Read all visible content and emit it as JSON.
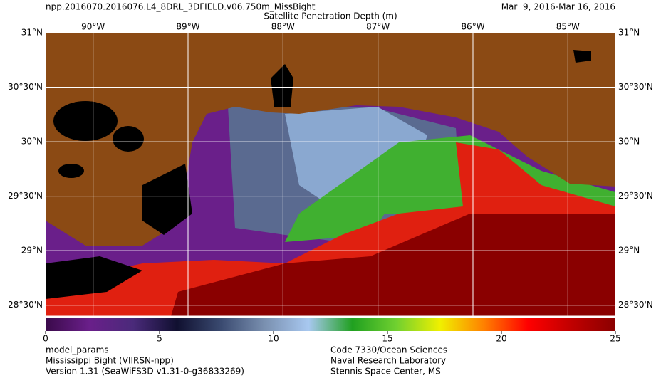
{
  "map_data": {
    "title": "npp.2016070.2016076.L4_8DRL_3DFIELD.v06.750m_MissBight",
    "date_range": "Mar  9, 2016-Mar 16, 2016",
    "product": "Satellite Penetration Depth (m)",
    "xlim": [
      -90.5,
      -84.5
    ],
    "ylim": [
      28.4,
      31
    ],
    "xticks": [
      {
        "value": -90,
        "label": "90°W"
      },
      {
        "value": -89,
        "label": "89°W"
      },
      {
        "value": -88,
        "label": "88°W"
      },
      {
        "value": -87,
        "label": "87°W"
      },
      {
        "value": -86,
        "label": "86°W"
      },
      {
        "value": -85,
        "label": "85°W"
      }
    ],
    "yticks": [
      {
        "value": 31,
        "label": "31°N"
      },
      {
        "value": 30.5,
        "label": "30°30'N"
      },
      {
        "value": 30,
        "label": "30°N"
      },
      {
        "value": 29.5,
        "label": "29°30'N"
      },
      {
        "value": 29,
        "label": "29°N"
      },
      {
        "value": 28.5,
        "label": "28°30'N"
      }
    ],
    "grid": true,
    "colorbar": {
      "lim": [
        0,
        25
      ],
      "ticks": [
        0,
        5,
        10,
        15,
        20,
        25
      ],
      "colors": [
        "#3a0a4a",
        "#6a1f8a",
        "#4a2a7a",
        "#101030",
        "#3a4a70",
        "#7a90b0",
        "#a8c8f0",
        "#20a020",
        "#70d030",
        "#f0f000",
        "#ff8000",
        "#ff0000",
        "#c00000",
        "#8a0000"
      ]
    },
    "footer_left": [
      "model_params",
      "Mississippi Bight (VIIRSN-npp)",
      "Version 1.31 (SeaWiFS3D v1.31-0-g36833269)"
    ],
    "footer_right": [
      "Code 7330/Ocean Sciences",
      "Naval Research Laboratory",
      "Stennis Space Center, MS"
    ]
  }
}
